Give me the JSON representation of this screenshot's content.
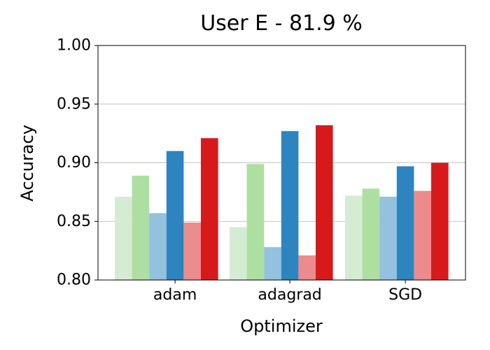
{
  "chart_data": {
    "type": "bar",
    "title": "User E - 81.9 %",
    "xlabel": "Optimizer",
    "ylabel": "Accuracy",
    "categories": [
      "adam",
      "adagrad",
      "SGD"
    ],
    "ylim": [
      0.8,
      1.0
    ],
    "yticks": [
      "0.80",
      "0.85",
      "0.90",
      "0.95",
      "1.00"
    ],
    "grid": "horizontal",
    "series": [
      {
        "color": "#d4ecd2",
        "values": [
          0.871,
          0.845,
          0.872
        ]
      },
      {
        "color": "#addfa1",
        "values": [
          0.889,
          0.899,
          0.878
        ]
      },
      {
        "color": "#93c1de",
        "values": [
          0.857,
          0.828,
          0.871
        ]
      },
      {
        "color": "#2e84bf",
        "values": [
          0.91,
          0.927,
          0.897
        ]
      },
      {
        "color": "#ec8b8b",
        "values": [
          0.849,
          0.821,
          0.876
        ]
      },
      {
        "color": "#d8191b",
        "values": [
          0.921,
          0.932,
          0.9
        ]
      }
    ]
  }
}
